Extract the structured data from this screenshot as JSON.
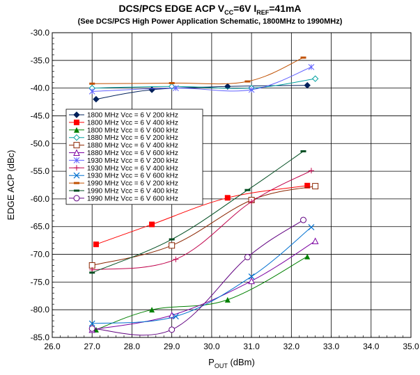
{
  "chart_data": {
    "type": "line",
    "title_parts": [
      "DCS/PCS EDGE ACP V",
      "CC",
      "=6V I",
      "REF",
      "=41mA"
    ],
    "subtitle": "(See DCS/PCS High Power Application Schematic, 1800MHz to 1990MHz)",
    "xlabel_parts": [
      "P",
      "OUT",
      " (dBm)"
    ],
    "ylabel": "EDGE ACP (dBc)",
    "xlim": [
      26.0,
      35.0
    ],
    "ylim": [
      -85.0,
      -30.0
    ],
    "x_ticks": [
      "26.0",
      "27.0",
      "28.0",
      "29.0",
      "30.0",
      "31.0",
      "32.0",
      "33.0",
      "34.0",
      "35.0"
    ],
    "y_ticks": [
      "-30.0",
      "-35.0",
      "-40.0",
      "-45.0",
      "-50.0",
      "-55.0",
      "-60.0",
      "-65.0",
      "-70.0",
      "-75.0",
      "-80.0",
      "-85.0"
    ],
    "grid": true,
    "legend_position": "left",
    "series": [
      {
        "name": "1800 MHz Vcc = 6 V 200 kHz",
        "color": "#00205b",
        "marker": "diamond-filled",
        "x": [
          27.1,
          28.5,
          30.4,
          32.4
        ],
        "y": [
          -42.0,
          -40.3,
          -39.7,
          -39.5
        ]
      },
      {
        "name": "1800 MHz Vcc = 6 V 400 kHz",
        "color": "#ff0000",
        "marker": "square-filled",
        "x": [
          27.1,
          28.5,
          30.4,
          32.4
        ],
        "y": [
          -68.2,
          -64.6,
          -59.8,
          -57.6
        ]
      },
      {
        "name": "1800 MHz Vcc = 6 V 600 kHz",
        "color": "#008000",
        "marker": "triangle-filled",
        "x": [
          27.1,
          28.5,
          30.4,
          32.4
        ],
        "y": [
          -83.6,
          -80.0,
          -78.2,
          -70.4
        ]
      },
      {
        "name": "1880 MHz Vcc = 6 V 200 kHz",
        "color": "#00a0a0",
        "marker": "diamond-open",
        "x": [
          27.0,
          29.0,
          31.0,
          32.6
        ],
        "y": [
          -40.0,
          -39.7,
          -40.0,
          -38.3
        ]
      },
      {
        "name": "1880 MHz Vcc = 6 V 400 kHz",
        "color": "#8b2500",
        "marker": "square-open",
        "x": [
          27.0,
          29.0,
          31.0,
          32.6
        ],
        "y": [
          -72.0,
          -68.4,
          -60.2,
          -57.7
        ]
      },
      {
        "name": "1880 MHz Vcc = 6 V 600 kHz",
        "color": "#7b00a0",
        "marker": "triangle-open",
        "x": [
          27.0,
          29.0,
          31.0,
          32.6
        ],
        "y": [
          -83.6,
          -81.0,
          -74.8,
          -67.6
        ]
      },
      {
        "name": "1930 MHz Vcc = 6 V 200 kHz",
        "color": "#6060ff",
        "marker": "asterisk",
        "x": [
          27.0,
          29.1,
          31.0,
          32.5
        ],
        "y": [
          -40.6,
          -40.0,
          -40.3,
          -36.2
        ]
      },
      {
        "name": "1930 MHz Vcc = 6 V 400 kHz",
        "color": "#c0004a",
        "marker": "plus",
        "x": [
          27.0,
          29.1,
          31.0,
          32.5
        ],
        "y": [
          -72.8,
          -70.9,
          -60.5,
          -54.9
        ]
      },
      {
        "name": "1930 MHz Vcc = 6 V 600 kHz",
        "color": "#0070d0",
        "marker": "x",
        "x": [
          27.0,
          29.1,
          31.0,
          32.5
        ],
        "y": [
          -82.5,
          -81.2,
          -74.0,
          -65.1
        ]
      },
      {
        "name": "1990 MHz Vcc = 6 V 200 kHz",
        "color": "#c05000",
        "marker": "dash",
        "x": [
          27.0,
          29.0,
          30.9,
          32.3
        ],
        "y": [
          -39.2,
          -39.1,
          -38.8,
          -34.5
        ]
      },
      {
        "name": "1990 MHz Vcc = 6 V 400 kHz",
        "color": "#004d20",
        "marker": "dash",
        "x": [
          27.0,
          29.0,
          30.9,
          32.3
        ],
        "y": [
          -73.3,
          -67.3,
          -58.4,
          -51.4
        ]
      },
      {
        "name": "1990 MHz Vcc = 6 V 600 kHz",
        "color": "#600080",
        "marker": "circle-open",
        "x": [
          27.0,
          29.0,
          30.9,
          32.3
        ],
        "y": [
          -83.4,
          -83.6,
          -70.5,
          -63.8
        ]
      }
    ]
  }
}
